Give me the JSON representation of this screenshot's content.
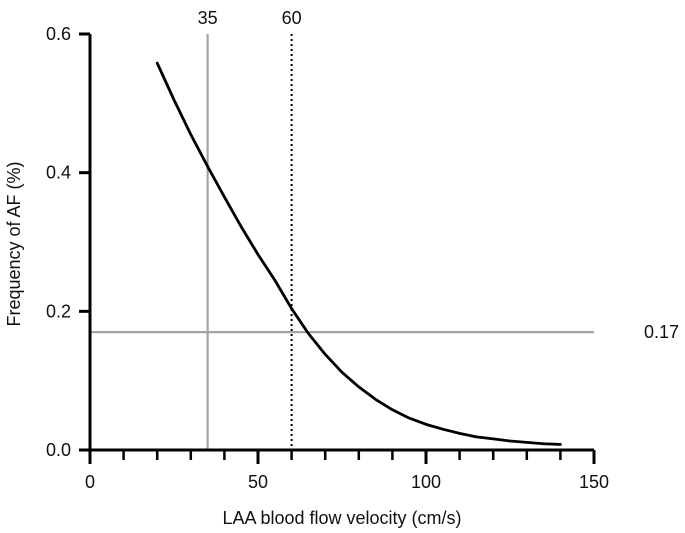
{
  "chart_data": {
    "type": "line",
    "title": "",
    "xlabel": "LAA blood flow velocity (cm/s)",
    "ylabel": "Frequency of AF (%)",
    "xlim": [
      0,
      150
    ],
    "ylim": [
      0,
      0.6
    ],
    "x_ticks": [
      {
        "value": 0,
        "label": "0"
      },
      {
        "value": 50,
        "label": "50"
      },
      {
        "value": 100,
        "label": "100"
      },
      {
        "value": 150,
        "label": "150"
      }
    ],
    "y_ticks": [
      {
        "value": 0,
        "label": "0.0"
      },
      {
        "value": 0.2,
        "label": "0.2"
      },
      {
        "value": 0.4,
        "label": "0.4"
      },
      {
        "value": 0.6,
        "label": "0.6"
      }
    ],
    "x_minor_tick_step": 10,
    "grid": false,
    "series": [
      {
        "name": "Frequency of AF",
        "color": "#000000",
        "x": [
          20,
          25,
          30,
          35,
          40,
          45,
          50,
          55,
          60,
          65,
          70,
          75,
          80,
          85,
          90,
          95,
          100,
          105,
          110,
          115,
          120,
          125,
          130,
          135,
          140
        ],
        "y": [
          0.558,
          0.505,
          0.455,
          0.409,
          0.365,
          0.322,
          0.282,
          0.245,
          0.204,
          0.168,
          0.138,
          0.112,
          0.091,
          0.073,
          0.058,
          0.046,
          0.037,
          0.03,
          0.024,
          0.019,
          0.016,
          0.013,
          0.011,
          0.009,
          0.008
        ]
      }
    ],
    "reference_lines": [
      {
        "orientation": "vertical",
        "value": 35,
        "label": "35",
        "style": "solid",
        "color": "#a3a3a3"
      },
      {
        "orientation": "vertical",
        "value": 60,
        "label": "60",
        "style": "dotted",
        "color": "#000000"
      },
      {
        "orientation": "horizontal",
        "value": 0.17,
        "label": "0.17",
        "style": "solid",
        "color": "#a3a3a3"
      }
    ]
  }
}
